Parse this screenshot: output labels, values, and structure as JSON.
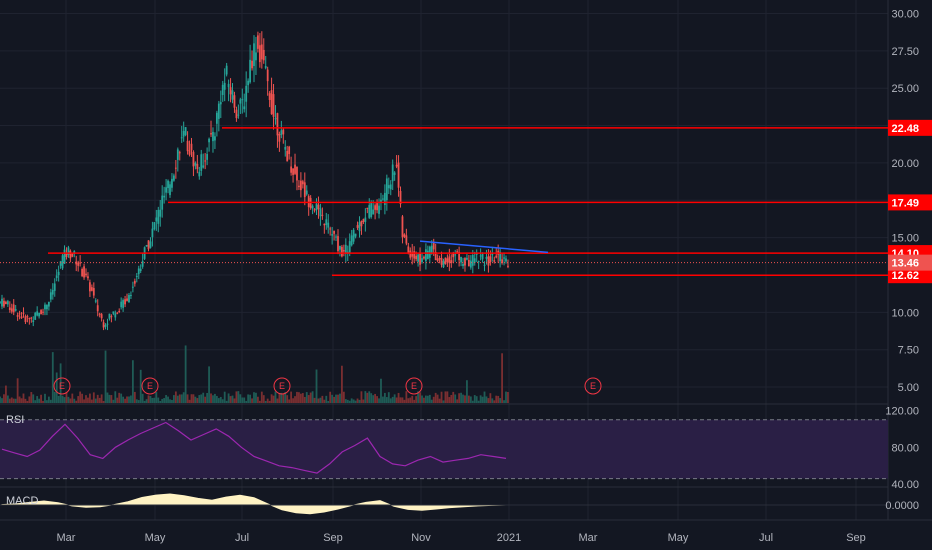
{
  "chart_data": {
    "type": "candlestick",
    "price_axis": {
      "ticks": [
        "30.00",
        "27.50",
        "25.00",
        "22.50",
        "20.00",
        "17.50",
        "15.00",
        "12.50",
        "10.00",
        "7.50",
        "5.00"
      ],
      "range": [
        4.0,
        30.5
      ]
    },
    "time_axis": {
      "labels": [
        "Mar",
        "May",
        "Jul",
        "Sep",
        "Nov",
        "2021",
        "Mar",
        "May",
        "Jul",
        "Sep"
      ]
    },
    "price_series_approx": [
      10.8,
      10.5,
      10.2,
      9.9,
      9.7,
      9.8,
      10.1,
      10.5,
      11.2,
      12.5,
      13.8,
      14.2,
      13.9,
      13.1,
      12.4,
      11.5,
      10.3,
      9.4,
      9.8,
      10.2,
      10.6,
      11.1,
      11.9,
      13.0,
      14.2,
      15.1,
      16.4,
      17.6,
      18.4,
      19.8,
      21.4,
      21.9,
      20.6,
      19.7,
      20.4,
      21.5,
      22.4,
      24.8,
      25.9,
      24.6,
      23.4,
      24.5,
      26.8,
      28.2,
      27.1,
      25.4,
      23.4,
      22.2,
      21.1,
      20.0,
      19.0,
      18.4,
      17.7,
      17.3,
      16.6,
      16.1,
      15.4,
      14.6,
      14.0,
      14.8,
      15.5,
      16.3,
      16.9,
      17.3,
      17.1,
      18.2,
      19.2,
      20.2,
      15.3,
      14.2,
      13.9,
      13.6,
      14.0,
      14.5,
      13.8,
      13.4,
      13.7,
      14.0,
      13.6,
      13.4,
      13.7,
      13.9,
      13.5,
      13.6,
      13.9,
      13.8,
      13.46
    ],
    "horizontal_levels": [
      {
        "value": 22.48,
        "label": "22.48"
      },
      {
        "value": 17.49,
        "label": "17.49"
      },
      {
        "value": 14.1,
        "label": "14.10"
      },
      {
        "value": 12.62,
        "label": "12.62"
      }
    ],
    "last_price": {
      "value": 13.46,
      "label": "13.46"
    },
    "earnings_markers": [
      "E",
      "E",
      "E",
      "E",
      "E"
    ],
    "rsi": {
      "label": "RSI",
      "ticks": [
        "120.00",
        "80.00",
        "40.00"
      ],
      "band_upper": 110,
      "band_lower": 46,
      "values_approx": [
        78,
        74,
        70,
        77,
        92,
        105,
        90,
        72,
        68,
        80,
        88,
        95,
        101,
        107,
        98,
        88,
        94,
        100,
        92,
        80,
        70,
        65,
        60,
        58,
        55,
        52,
        62,
        75,
        82,
        90,
        70,
        62,
        60,
        66,
        70,
        64,
        66,
        68,
        72,
        70,
        68
      ]
    },
    "macd": {
      "label": "MACD",
      "ticks": [
        "0.0000"
      ],
      "values_approx": [
        0.02,
        0.05,
        0.12,
        0.18,
        0.1,
        -0.04,
        -0.1,
        -0.08,
        0.02,
        0.15,
        0.34,
        0.45,
        0.5,
        0.42,
        0.3,
        0.22,
        0.36,
        0.44,
        0.33,
        0.05,
        -0.22,
        -0.35,
        -0.4,
        -0.32,
        -0.18,
        -0.02,
        0.12,
        0.2,
        -0.06,
        -0.2,
        -0.24,
        -0.18,
        -0.12,
        -0.08,
        -0.04,
        -0.02,
        0.0
      ]
    }
  }
}
